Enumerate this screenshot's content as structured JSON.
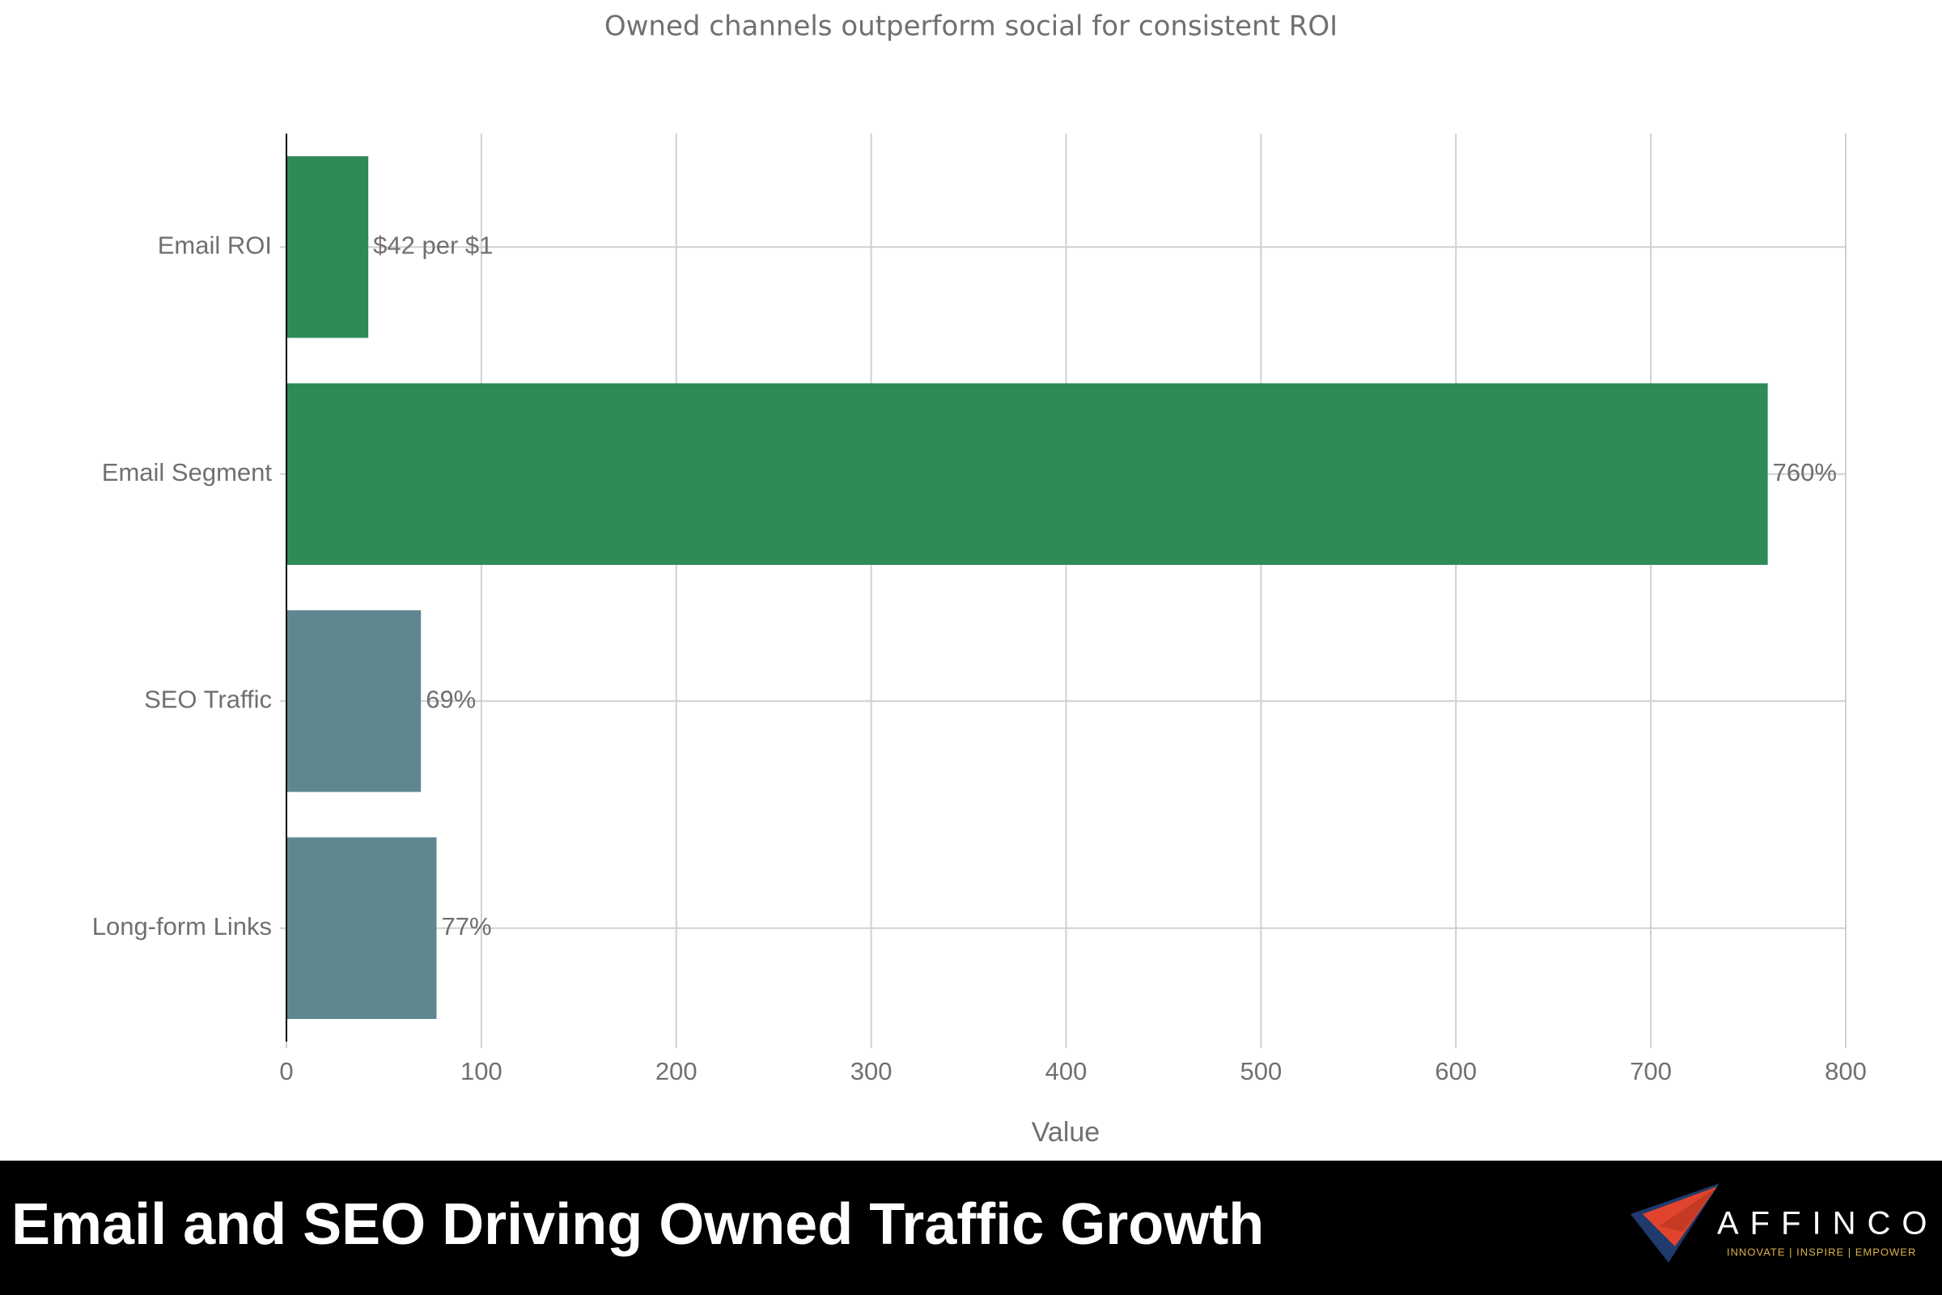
{
  "chart_data": {
    "type": "bar",
    "orientation": "horizontal",
    "title": "Owned channels outperform social for consistent ROI",
    "x_label": "Value",
    "categories": [
      "Email ROI",
      "Email Segment",
      "SEO Traffic",
      "Long-form Links"
    ],
    "values": [
      42,
      760,
      69,
      77
    ],
    "value_labels": [
      "$42 per $1",
      "760%",
      "69%",
      "77%"
    ],
    "colors": [
      "#2e8b57",
      "#2e8b57",
      "#5f8790",
      "#5f8790"
    ],
    "xlim": [
      0,
      800
    ],
    "xticks": [
      0,
      100,
      200,
      300,
      400,
      500,
      600,
      700,
      800
    ],
    "grid": true
  },
  "banner": {
    "title": "Email and SEO Driving Owned Traffic Growth",
    "logo": "AFFINCO",
    "tagline": "INNOVATE | INSPIRE | EMPOWER"
  }
}
